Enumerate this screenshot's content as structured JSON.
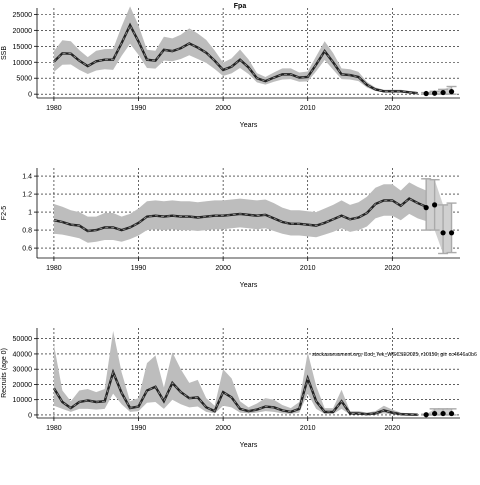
{
  "figure": {
    "title": "Fpa"
  },
  "chart_data": [
    {
      "type": "line",
      "xlabel": "Years",
      "ylabel": "SSB",
      "xlim": [
        1978,
        2028
      ],
      "ylim": [
        -1200,
        27000
      ],
      "xticks": [
        1980,
        1990,
        2000,
        2010,
        2020
      ],
      "yticks": [
        0,
        5000,
        10000,
        15000,
        20000,
        25000
      ],
      "grid": true,
      "series": [
        {
          "x": [
            1980,
            1981,
            1982,
            1983,
            1984,
            1985,
            1986,
            1987,
            1988,
            1989,
            1990,
            1991,
            1992,
            1993,
            1994,
            1995,
            1996,
            1997,
            1998,
            1999,
            2000,
            2001,
            2002,
            2003,
            2004,
            2005,
            2006,
            2007,
            2008,
            2009,
            2010,
            2011,
            2012,
            2013,
            2014,
            2015,
            2016,
            2017,
            2018,
            2019,
            2020,
            2021,
            2022,
            2023
          ],
          "values": [
            10200,
            12800,
            12700,
            10500,
            8800,
            10300,
            10800,
            10800,
            16000,
            21600,
            16500,
            10800,
            10500,
            13900,
            13500,
            14400,
            15900,
            14600,
            13000,
            10500,
            7600,
            8600,
            10800,
            8400,
            5000,
            4100,
            5200,
            6200,
            6200,
            5200,
            5400,
            9300,
            13500,
            10000,
            6200,
            6000,
            5400,
            2900,
            1500,
            900,
            900,
            900,
            600,
            300
          ],
          "lower": [
            7000,
            9200,
            9300,
            7600,
            6300,
            7400,
            7800,
            7600,
            12000,
            15800,
            12300,
            8200,
            8000,
            10500,
            10300,
            11000,
            12200,
            11000,
            9800,
            7900,
            5700,
            6500,
            8200,
            6300,
            3700,
            3000,
            3900,
            4600,
            4700,
            3900,
            4000,
            7200,
            10700,
            7700,
            4700,
            4600,
            4100,
            2100,
            1000,
            600,
            500,
            500,
            300,
            100
          ],
          "upper": [
            13500,
            16900,
            16600,
            13800,
            11600,
            13600,
            14100,
            14200,
            21200,
            27500,
            21500,
            13900,
            13600,
            18000,
            17500,
            18600,
            20600,
            19000,
            17000,
            13700,
            9900,
            11200,
            14000,
            10900,
            6600,
            5400,
            6800,
            8100,
            8100,
            6800,
            7100,
            11900,
            16600,
            12900,
            8100,
            7800,
            7000,
            3800,
            2100,
            1400,
            1400,
            1400,
            1000,
            700
          ]
        }
      ],
      "forecast": {
        "x": [
          2024,
          2025,
          2026,
          2027
        ],
        "values": [
          200,
          300,
          500,
          800
        ],
        "lower": [
          0,
          0,
          0,
          0
        ],
        "upper": [
          500,
          900,
          1500,
          2400
        ]
      }
    },
    {
      "type": "line",
      "xlabel": "Years",
      "ylabel": "F2-5",
      "xlim": [
        1978,
        2028
      ],
      "ylim": [
        0.49,
        1.49
      ],
      "xticks": [
        1980,
        1990,
        2000,
        2010,
        2020
      ],
      "yticks": [
        0.6,
        0.8,
        1.0,
        1.2,
        1.4
      ],
      "grid": true,
      "series": [
        {
          "x": [
            1980,
            1981,
            1982,
            1983,
            1984,
            1985,
            1986,
            1987,
            1988,
            1989,
            1990,
            1991,
            1992,
            1993,
            1994,
            1995,
            1996,
            1997,
            1998,
            1999,
            2000,
            2001,
            2002,
            2003,
            2004,
            2005,
            2006,
            2007,
            2008,
            2009,
            2010,
            2011,
            2012,
            2013,
            2014,
            2015,
            2016,
            2017,
            2018,
            2019,
            2020,
            2021,
            2022,
            2023,
            2024
          ],
          "values": [
            0.91,
            0.89,
            0.86,
            0.85,
            0.79,
            0.8,
            0.83,
            0.83,
            0.8,
            0.83,
            0.88,
            0.95,
            0.96,
            0.95,
            0.96,
            0.95,
            0.95,
            0.94,
            0.95,
            0.96,
            0.96,
            0.97,
            0.98,
            0.97,
            0.96,
            0.97,
            0.93,
            0.89,
            0.87,
            0.87,
            0.86,
            0.85,
            0.88,
            0.92,
            0.96,
            0.92,
            0.94,
            0.99,
            1.09,
            1.13,
            1.13,
            1.07,
            1.15,
            1.1,
            1.06
          ],
          "lower": [
            0.76,
            0.75,
            0.73,
            0.71,
            0.66,
            0.67,
            0.69,
            0.69,
            0.67,
            0.7,
            0.74,
            0.8,
            0.81,
            0.8,
            0.81,
            0.8,
            0.8,
            0.79,
            0.8,
            0.81,
            0.81,
            0.82,
            0.83,
            0.82,
            0.81,
            0.82,
            0.79,
            0.76,
            0.74,
            0.74,
            0.73,
            0.72,
            0.75,
            0.78,
            0.82,
            0.78,
            0.8,
            0.84,
            0.93,
            0.96,
            0.96,
            0.91,
            0.98,
            0.93,
            0.9
          ],
          "upper": [
            1.09,
            1.06,
            1.02,
            1.0,
            0.95,
            0.95,
            0.99,
            0.99,
            0.95,
            0.98,
            1.04,
            1.12,
            1.13,
            1.12,
            1.13,
            1.12,
            1.12,
            1.11,
            1.12,
            1.13,
            1.13,
            1.14,
            1.15,
            1.14,
            1.13,
            1.14,
            1.1,
            1.05,
            1.02,
            1.02,
            1.01,
            1.0,
            1.04,
            1.08,
            1.13,
            1.08,
            1.11,
            1.17,
            1.27,
            1.31,
            1.31,
            1.24,
            1.33,
            1.28,
            1.24
          ]
        }
      ],
      "forecast": {
        "x": [
          2024,
          2025,
          2026,
          2027
        ],
        "values": [
          1.05,
          1.08,
          0.77,
          0.77
        ],
        "lower": [
          0.8,
          0.8,
          0.54,
          0.55
        ],
        "upper": [
          1.37,
          1.36,
          1.08,
          1.1
        ]
      }
    },
    {
      "type": "line",
      "xlabel": "Years",
      "ylabel": "Recruits (age 0)",
      "xlim": [
        1978,
        2028
      ],
      "ylim": [
        -2000,
        57000
      ],
      "xticks": [
        1980,
        1990,
        2000,
        2010,
        2020
      ],
      "yticks": [
        0,
        10000,
        20000,
        30000,
        40000,
        50000
      ],
      "grid": true,
      "annotation": "stockassessment.org, Cod_7ek_WGCSE2025, r10159, git: cc4646a0b6",
      "series": [
        {
          "x": [
            1980,
            1981,
            1982,
            1983,
            1984,
            1985,
            1986,
            1987,
            1988,
            1989,
            1990,
            1991,
            1992,
            1993,
            1994,
            1995,
            1996,
            1997,
            1998,
            1999,
            2000,
            2001,
            2002,
            2003,
            2004,
            2005,
            2006,
            2007,
            2008,
            2009,
            2010,
            2011,
            2012,
            2013,
            2014,
            2015,
            2016,
            2017,
            2018,
            2019,
            2020,
            2021,
            2022,
            2023
          ],
          "values": [
            17500,
            8500,
            4500,
            8500,
            9500,
            8500,
            9000,
            28000,
            14500,
            4500,
            5500,
            16000,
            18500,
            9000,
            21000,
            15000,
            11000,
            11500,
            5000,
            2500,
            15000,
            11500,
            4000,
            2500,
            3500,
            5500,
            5000,
            3000,
            2000,
            4000,
            24000,
            9000,
            2000,
            2000,
            9000,
            1000,
            1000,
            500,
            1000,
            3000,
            1500,
            500,
            300,
            200
          ],
          "lower": [
            6000,
            4000,
            2000,
            4000,
            4000,
            3500,
            4000,
            14000,
            7000,
            2000,
            2500,
            8000,
            8500,
            4000,
            10000,
            7000,
            5000,
            5500,
            2000,
            1000,
            6000,
            5000,
            1500,
            1000,
            1500,
            2500,
            2000,
            1000,
            700,
            1500,
            14000,
            4000,
            700,
            700,
            4000,
            300,
            300,
            100,
            300,
            1000,
            500,
            100,
            50,
            0
          ],
          "upper": [
            46000,
            16000,
            9000,
            16000,
            17000,
            15000,
            17000,
            55000,
            28000,
            9000,
            11000,
            34000,
            39000,
            18000,
            41000,
            30000,
            21000,
            23000,
            11000,
            6000,
            30000,
            24000,
            9000,
            5000,
            7500,
            11000,
            10000,
            6500,
            4500,
            8500,
            41000,
            19000,
            4500,
            4500,
            16500,
            2500,
            2500,
            1500,
            2500,
            6000,
            3500,
            1500,
            1000,
            800
          ]
        }
      ],
      "forecast": {
        "x": [
          2024,
          2025,
          2026,
          2027
        ],
        "values": [
          150,
          900,
          900,
          900
        ],
        "lower": [
          0,
          0,
          0,
          0
        ],
        "upper": [
          500,
          4000,
          4000,
          4000
        ]
      }
    }
  ]
}
